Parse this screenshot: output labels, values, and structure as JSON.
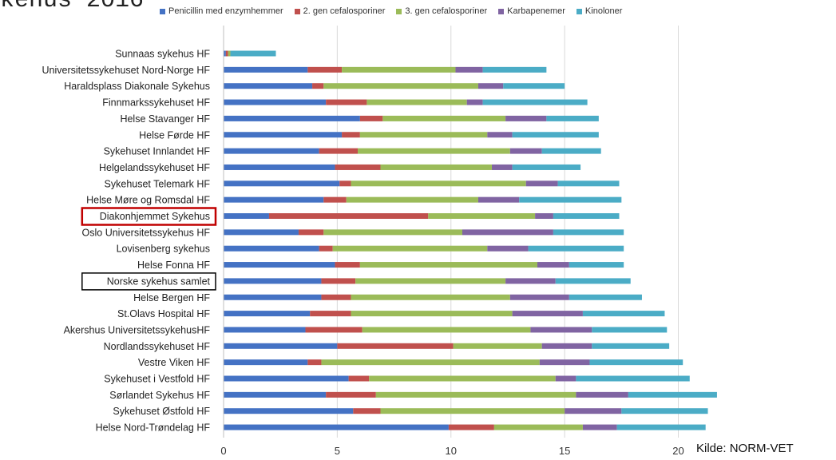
{
  "title_fragment": "kehus 2016",
  "source_note": "Kilde: NORM-VET",
  "colors": {
    "series": [
      "#4472C4",
      "#C0504D",
      "#9BBB59",
      "#8064A2",
      "#4BACC6"
    ],
    "highlight_red": "#C00000",
    "highlight_black": "#000000",
    "grid": "#D9D9D9"
  },
  "chart_data": {
    "type": "bar",
    "orientation": "horizontal",
    "stacked": true,
    "xlim": [
      0,
      21
    ],
    "xticks": [
      0,
      5,
      10,
      15,
      20
    ],
    "grid": true,
    "legend_position": "top",
    "categories": [
      "Sunnaas sykehus HF",
      "Universitetssykehuset Nord-Norge HF",
      "Haraldsplass Diakonale Sykehus",
      "Finnmarkssykehuset HF",
      "Helse Stavanger HF",
      "Helse Førde HF",
      "Sykehuset Innlandet HF",
      "Helgelandssykehuset HF",
      "Sykehuset Telemark HF",
      "Helse Møre og Romsdal HF",
      "Diakonhjemmet Sykehus",
      "Oslo Universitetssykehus HF",
      "Lovisenberg sykehus",
      "Helse Fonna HF",
      "Norske sykehus samlet",
      "Helse Bergen HF",
      "St.Olavs Hospital HF",
      "Akershus UniversitetssykehusHF",
      "Nordlandssykehuset HF",
      "Vestre Viken HF",
      "Sykehuset i Vestfold HF",
      "Sørlandet Sykehus HF",
      "Sykehuset Østfold HF",
      "Helse Nord-Trøndelag HF"
    ],
    "highlighted": {
      "Diakonhjemmet Sykehus": "red",
      "Norske sykehus samlet": "black"
    },
    "series": [
      {
        "name": "Penicillin med enzymhemmer",
        "values": [
          0.1,
          3.7,
          3.9,
          4.5,
          6.0,
          5.2,
          4.2,
          4.9,
          5.1,
          4.4,
          2.0,
          3.3,
          4.2,
          4.9,
          4.3,
          4.3,
          3.8,
          3.6,
          5.0,
          3.7,
          5.5,
          4.5,
          5.7,
          9.9
        ]
      },
      {
        "name": "2. gen cefalosporiner",
        "values": [
          0.1,
          1.5,
          0.5,
          1.8,
          1.0,
          0.8,
          1.7,
          2.0,
          0.5,
          1.0,
          7.0,
          1.1,
          0.6,
          1.1,
          1.5,
          1.3,
          1.8,
          2.5,
          5.1,
          0.6,
          0.9,
          2.2,
          1.2,
          2.0
        ]
      },
      {
        "name": "3. gen cefalosporiner",
        "values": [
          0.1,
          5.0,
          6.8,
          4.4,
          5.4,
          5.6,
          6.7,
          4.9,
          7.7,
          5.8,
          4.7,
          6.1,
          6.8,
          7.8,
          6.6,
          7.0,
          7.1,
          7.4,
          3.9,
          9.6,
          8.2,
          8.8,
          8.1,
          3.9
        ]
      },
      {
        "name": "Karbapenemer",
        "values": [
          0.0,
          1.2,
          1.1,
          0.7,
          1.8,
          1.1,
          1.4,
          0.9,
          1.4,
          1.8,
          0.8,
          4.0,
          1.8,
          1.4,
          2.2,
          2.6,
          3.1,
          2.7,
          2.2,
          2.2,
          0.9,
          2.3,
          2.5,
          1.5
        ]
      },
      {
        "name": "Kinoloner",
        "values": [
          2.0,
          2.8,
          2.7,
          4.6,
          2.3,
          3.8,
          2.6,
          3.0,
          2.7,
          4.5,
          2.9,
          3.1,
          4.2,
          2.4,
          3.3,
          3.2,
          3.6,
          3.3,
          3.4,
          4.1,
          5.0,
          3.9,
          3.8,
          3.9
        ]
      }
    ]
  }
}
